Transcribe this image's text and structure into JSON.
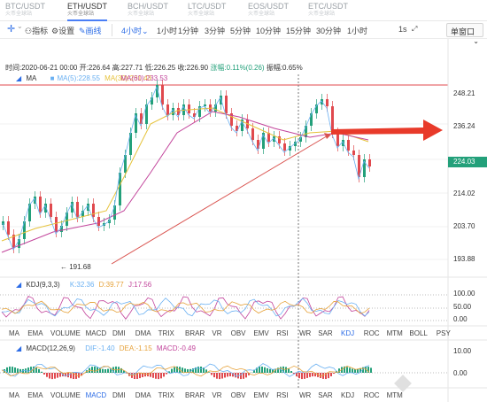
{
  "pairs": [
    {
      "name": "BTC/USDT",
      "sub": "火币全球站"
    },
    {
      "name": "ETH/USDT",
      "sub": "火币全球站"
    },
    {
      "name": "BCH/USDT",
      "sub": "火币全球站"
    },
    {
      "name": "LTC/USDT",
      "sub": "火币全球站"
    },
    {
      "name": "EOS/USDT",
      "sub": "火币全球站"
    },
    {
      "name": "ETC/USDT",
      "sub": "火币全球站"
    }
  ],
  "toolbar": {
    "cursor_icon": "crosshair-icon",
    "indicator": "指标",
    "settings": "设置",
    "draw": "画线",
    "timeframe": "4小时",
    "intervals": [
      "1小时",
      "1分钟",
      "3分钟",
      "5分钟",
      "10分钟",
      "15分钟",
      "30分钟",
      "1小时"
    ],
    "second_label": "1s",
    "window_mode": "单窗口"
  },
  "info": {
    "time": "时间:2020-06-21 00:00",
    "open": "开:226.64",
    "high": "高:227.71",
    "low": "低:226.25",
    "close": "收:226.90",
    "change": "涨幅:0.11%(0.26)",
    "amplitude": "振幅:0.65%"
  },
  "ma_legend": {
    "label": "MA",
    "ma5": "MA(5):228.55",
    "ma30": "MA(30):231.43",
    "ma60": "MA(60):233.53"
  },
  "price_axis": [
    "248.21",
    "236.24",
    "224.03",
    "214.02",
    "203.70",
    "193.88"
  ],
  "last_price": "224.03",
  "low_marker": "191.68",
  "kdj": {
    "label": "KDJ(9,3,3)",
    "k": "K:32.36",
    "d": "D:39.77",
    "j": "J:17.56",
    "axis": [
      "100.00",
      "50.00",
      "0.00"
    ]
  },
  "indicator_tabs": [
    "MA",
    "EMA",
    "VOLUME",
    "MACD",
    "DMI",
    "DMA",
    "TRIX",
    "BRAR",
    "VR",
    "OBV",
    "EMV",
    "RSI",
    "WR",
    "SAR",
    "KDJ",
    "ROC",
    "MTM",
    "BOLL",
    "PSY"
  ],
  "indicator_tabs_active": "KDJ",
  "macd": {
    "label": "MACD(12,26,9)",
    "dif": "DIF:-1.40",
    "dea": "DEA:-1.15",
    "macd": "MACD:-0.49",
    "axis": [
      "10.00",
      "0.00"
    ]
  },
  "bottom_tabs": [
    "MA",
    "EMA",
    "VOLUME",
    "MACD",
    "DMI",
    "DMA",
    "TRIX",
    "BRAR",
    "VR",
    "OBV",
    "EMV",
    "RSI",
    "WR",
    "SAR",
    "KDJ",
    "ROC",
    "MTM"
  ],
  "bottom_tabs_active": "MACD",
  "colors": {
    "up": "#23a07a",
    "down": "#e0494e",
    "accent": "#2c6ce6",
    "ma5": "#6ab0f2",
    "ma30": "#e6c23a",
    "ma60": "#c2449b",
    "arrow": "#e83a2a"
  }
}
